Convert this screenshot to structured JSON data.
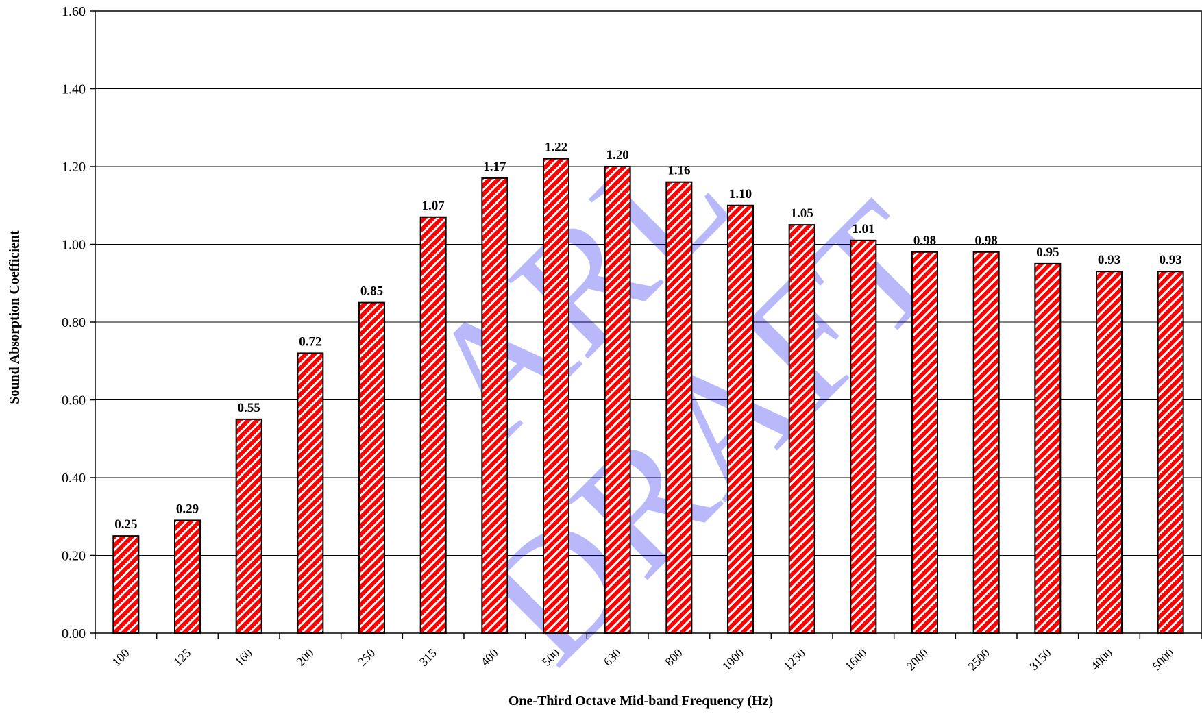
{
  "chart_data": {
    "type": "bar",
    "categories": [
      "100",
      "125",
      "160",
      "200",
      "250",
      "315",
      "400",
      "500",
      "630",
      "800",
      "1000",
      "1250",
      "1600",
      "2000",
      "2500",
      "3150",
      "4000",
      "5000"
    ],
    "values": [
      0.25,
      0.29,
      0.55,
      0.72,
      0.85,
      1.07,
      1.17,
      1.22,
      1.2,
      1.16,
      1.1,
      1.05,
      1.01,
      0.98,
      0.98,
      0.95,
      0.93,
      0.93
    ],
    "data_labels": [
      "0.25",
      "0.29",
      "0.55",
      "0.72",
      "0.85",
      "1.07",
      "1.17",
      "1.22",
      "1.20",
      "1.16",
      "1.10",
      "1.05",
      "1.01",
      "0.98",
      "0.98",
      "0.95",
      "0.93",
      "0.93"
    ],
    "y_ticks": [
      "0.00",
      "0.20",
      "0.40",
      "0.60",
      "0.80",
      "1.00",
      "1.20",
      "1.40",
      "1.60"
    ],
    "xlabel": "One-Third Octave Mid-band Frequency (Hz)",
    "ylabel": "Sound Absorption Coefficient",
    "ylim": [
      0,
      1.6
    ],
    "grid": true,
    "legend": "none",
    "bar_color": "#ff0000",
    "bar_stripe_color": "#ffffff",
    "watermark": [
      "ARL",
      "DRAFT"
    ],
    "watermark_color": "#0000ee"
  }
}
